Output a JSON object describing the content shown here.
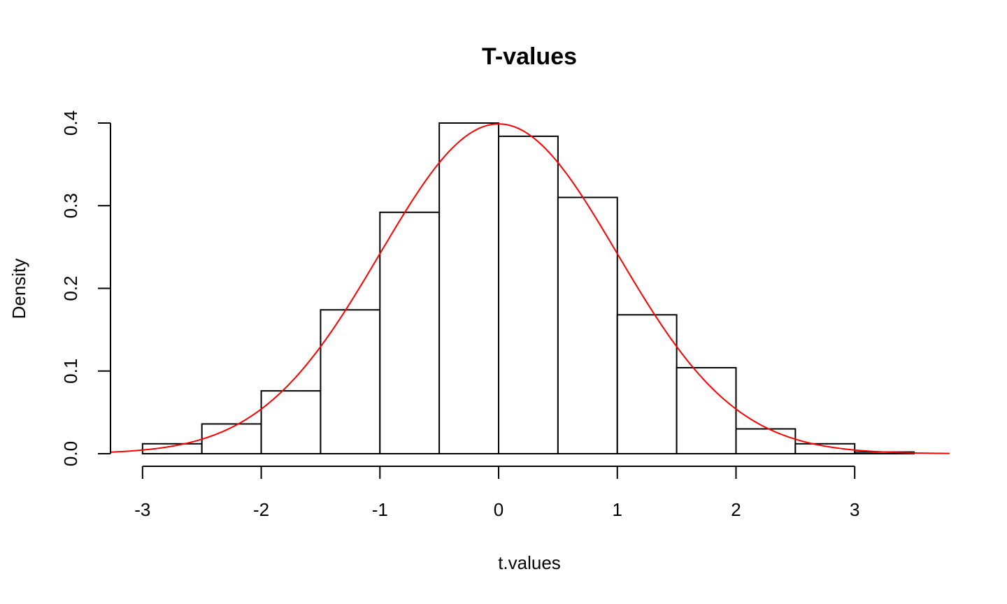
{
  "chart_data": {
    "type": "bar",
    "title": "T-values",
    "xlabel": "t.values",
    "ylabel": "Density",
    "xlim": [
      -3.27,
      3.8
    ],
    "ylim": [
      0,
      0.4
    ],
    "x_ticks": [
      -3,
      -2,
      -1,
      0,
      1,
      2,
      3
    ],
    "x_tick_labels": [
      "-3",
      "-2",
      "-1",
      "0",
      "1",
      "2",
      "3"
    ],
    "y_ticks": [
      0.0,
      0.1,
      0.2,
      0.3,
      0.4
    ],
    "y_tick_labels": [
      "0.0",
      "0.1",
      "0.2",
      "0.3",
      "0.4"
    ],
    "grid": false,
    "bins": [
      {
        "x0": -3.0,
        "x1": -2.5,
        "density": 0.012
      },
      {
        "x0": -2.5,
        "x1": -2.0,
        "density": 0.036
      },
      {
        "x0": -2.0,
        "x1": -1.5,
        "density": 0.076
      },
      {
        "x0": -1.5,
        "x1": -1.0,
        "density": 0.174
      },
      {
        "x0": -1.0,
        "x1": -0.5,
        "density": 0.292
      },
      {
        "x0": -0.5,
        "x1": 0.0,
        "density": 0.4
      },
      {
        "x0": 0.0,
        "x1": 0.5,
        "density": 0.384
      },
      {
        "x0": 0.5,
        "x1": 1.0,
        "density": 0.31
      },
      {
        "x0": 1.0,
        "x1": 1.5,
        "density": 0.168
      },
      {
        "x0": 1.5,
        "x1": 2.0,
        "density": 0.104
      },
      {
        "x0": 2.0,
        "x1": 2.5,
        "density": 0.03
      },
      {
        "x0": 2.5,
        "x1": 3.0,
        "density": 0.012
      },
      {
        "x0": 3.0,
        "x1": 3.5,
        "density": 0.002
      }
    ],
    "overlay_curve": {
      "type": "line",
      "distribution": "normal",
      "mean": 0,
      "sd": 1,
      "color": "#ff0000"
    },
    "bar_fill": "#ffffff",
    "bar_stroke": "#000000"
  }
}
